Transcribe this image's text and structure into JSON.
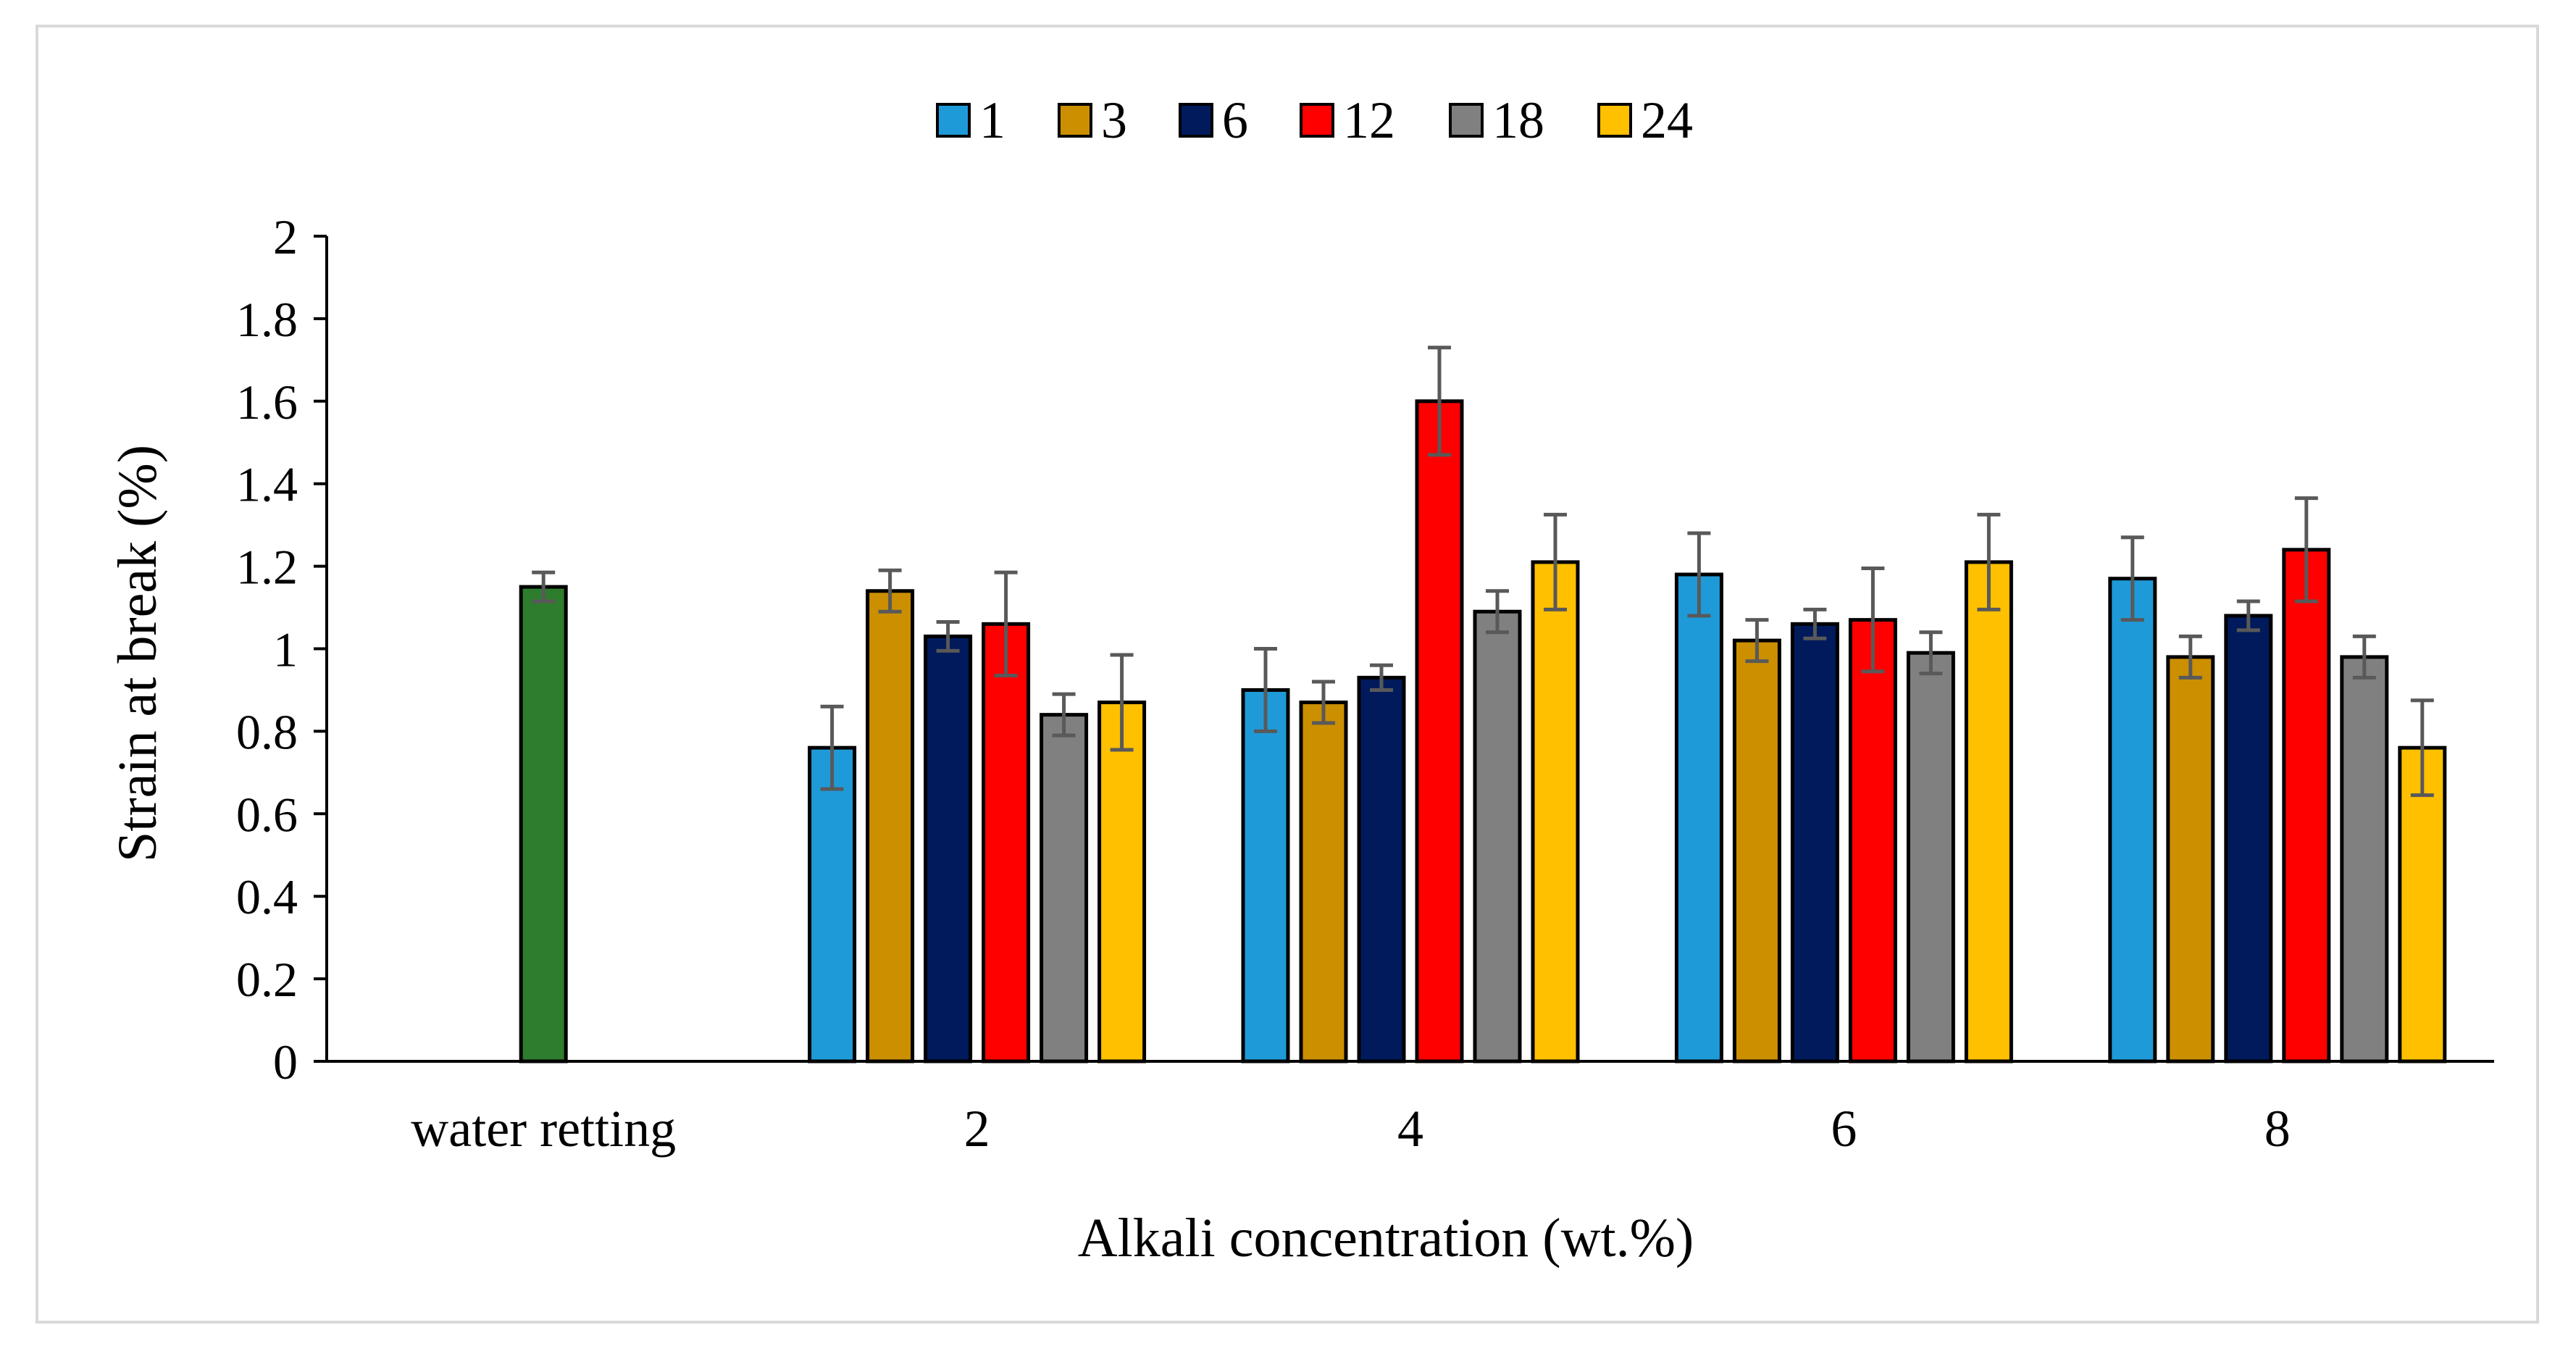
{
  "chart_data": {
    "type": "bar",
    "xlabel": "Alkali concentration (wt.%)",
    "ylabel": "Strain at break (%)",
    "ylim": [
      0,
      2
    ],
    "yticks": [
      "0",
      "0.2",
      "0.4",
      "0.6",
      "0.8",
      "1",
      "1.2",
      "1.4",
      "1.6",
      "1.8",
      "2"
    ],
    "grid": false,
    "legend_position": "top-center",
    "categories": [
      "water retting",
      "2",
      "4",
      "6",
      "8"
    ],
    "reference": {
      "category": "water retting",
      "value": 1.15,
      "error": 0.035,
      "color": "#2e7d2e"
    },
    "series": [
      {
        "name": "1",
        "color": "#1f9ad8",
        "values": [
          null,
          0.76,
          0.9,
          1.18,
          1.17
        ],
        "errors": [
          null,
          0.1,
          0.1,
          0.1,
          0.1
        ]
      },
      {
        "name": "3",
        "color": "#cc8f00",
        "values": [
          null,
          1.14,
          0.87,
          1.02,
          0.98
        ],
        "errors": [
          null,
          0.05,
          0.05,
          0.05,
          0.05
        ]
      },
      {
        "name": "6",
        "color": "#001a5c",
        "values": [
          null,
          1.03,
          0.93,
          1.06,
          1.08
        ],
        "errors": [
          null,
          0.035,
          0.03,
          0.035,
          0.035
        ]
      },
      {
        "name": "12",
        "color": "#ff0000",
        "values": [
          null,
          1.06,
          1.6,
          1.07,
          1.24
        ],
        "errors": [
          null,
          0.125,
          0.13,
          0.125,
          0.125
        ]
      },
      {
        "name": "18",
        "color": "#808080",
        "values": [
          null,
          0.84,
          1.09,
          0.99,
          0.98
        ],
        "errors": [
          null,
          0.05,
          0.05,
          0.05,
          0.05
        ]
      },
      {
        "name": "24",
        "color": "#ffc000",
        "values": [
          null,
          0.87,
          1.21,
          1.21,
          0.76
        ],
        "errors": [
          null,
          0.115,
          0.115,
          0.115,
          0.115
        ]
      }
    ]
  }
}
